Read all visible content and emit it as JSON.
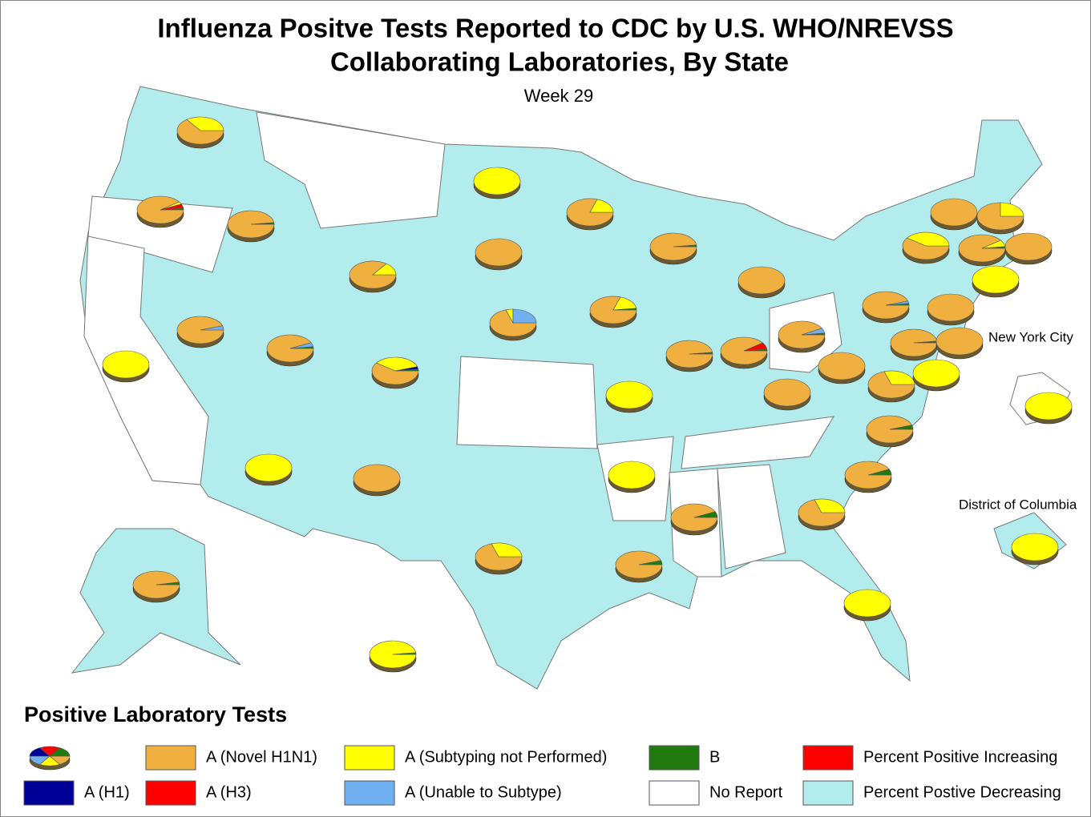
{
  "title_line1": "Influenza Positve Tests Reported to CDC by U.S. WHO/NREVSS",
  "title_line2": "Collaborating Laboratories, By State",
  "subtitle": "Week 29",
  "places": [
    "New York City",
    "District of Columbia"
  ],
  "legend": {
    "title": "Positive Laboratory Tests",
    "items": [
      {
        "label": "A (Novel H1N1)",
        "color": "#f0b040"
      },
      {
        "label": "A (Subtyping not Performed)",
        "color": "#ffff00"
      },
      {
        "label": "A (Unable to Subtype)",
        "color": "#70b0f0"
      },
      {
        "label": "A (H1)",
        "color": "#000099"
      },
      {
        "label": "A (H3)",
        "color": "#ff0000"
      },
      {
        "label": "B",
        "color": "#207a10"
      },
      {
        "label": "Percent Positive Increasing",
        "color": "#ff0000"
      },
      {
        "label": "Percent Postive Decreasing",
        "color": "#b3ecec"
      },
      {
        "label": "No Report",
        "color": "#ffffff"
      }
    ]
  },
  "pies": [
    [
      65,
      35,
      0,
      0,
      0,
      0
    ],
    [
      90,
      3,
      0,
      0,
      5,
      2
    ],
    [
      98,
      0,
      0,
      0,
      0,
      2
    ],
    [
      85,
      15,
      0,
      0,
      0,
      0
    ],
    [
      0,
      100,
      0,
      0,
      0,
      0
    ],
    [
      100,
      0,
      0,
      0,
      0,
      0
    ],
    [
      80,
      20,
      0,
      0,
      0,
      0
    ],
    [
      98,
      0,
      0,
      0,
      0,
      2
    ],
    [
      100,
      0,
      0,
      0,
      0,
      0
    ],
    [
      70,
      5,
      25,
      0,
      0,
      0
    ],
    [
      80,
      18,
      0,
      0,
      0,
      2
    ],
    [
      95,
      0,
      5,
      0,
      0,
      0
    ],
    [
      93,
      0,
      5,
      0,
      0,
      2
    ],
    [
      60,
      35,
      0,
      3,
      0,
      2
    ],
    [
      0,
      100,
      0,
      0,
      0,
      0
    ],
    [
      98,
      0,
      0,
      0,
      0,
      2
    ],
    [
      90,
      0,
      0,
      0,
      8,
      2
    ],
    [
      92,
      0,
      6,
      0,
      0,
      2
    ],
    [
      0,
      100,
      0,
      0,
      0,
      0
    ],
    [
      100,
      0,
      0,
      0,
      0,
      0
    ],
    [
      100,
      0,
      0,
      0,
      0,
      0
    ],
    [
      70,
      30,
      0,
      0,
      0,
      0
    ],
    [
      95,
      0,
      3,
      0,
      0,
      2
    ],
    [
      60,
      40,
      0,
      0,
      0,
      0
    ],
    [
      100,
      0,
      0,
      0,
      0,
      0
    ],
    [
      75,
      25,
      0,
      0,
      0,
      0
    ],
    [
      90,
      8,
      0,
      0,
      0,
      2
    ],
    [
      100,
      0,
      0,
      0,
      0,
      0
    ],
    [
      0,
      100,
      0,
      0,
      0,
      0
    ],
    [
      100,
      0,
      0,
      0,
      0,
      0
    ],
    [
      98,
      0,
      0,
      0,
      0,
      2
    ],
    [
      100,
      0,
      0,
      0,
      0,
      0
    ],
    [
      0,
      100,
      0,
      0,
      0,
      0
    ],
    [
      95,
      0,
      0,
      0,
      0,
      5
    ],
    [
      93,
      0,
      0,
      0,
      0,
      7
    ],
    [
      70,
      30,
      0,
      0,
      0,
      0
    ],
    [
      0,
      100,
      0,
      0,
      0,
      0
    ],
    [
      0,
      100,
      0,
      0,
      0,
      0
    ],
    [
      93,
      0,
      0,
      0,
      0,
      7
    ],
    [
      95,
      0,
      0,
      0,
      0,
      5
    ],
    [
      70,
      30,
      0,
      0,
      0,
      0
    ],
    [
      100,
      0,
      0,
      0,
      0,
      0
    ],
    [
      0,
      100,
      0,
      0,
      0,
      0
    ],
    [
      97,
      0,
      0,
      0,
      0,
      3
    ],
    [
      0,
      98,
      0,
      0,
      0,
      2
    ],
    [
      0,
      100,
      0,
      0,
      0,
      0
    ],
    [
      0,
      100,
      0,
      0,
      0,
      0
    ]
  ]
}
